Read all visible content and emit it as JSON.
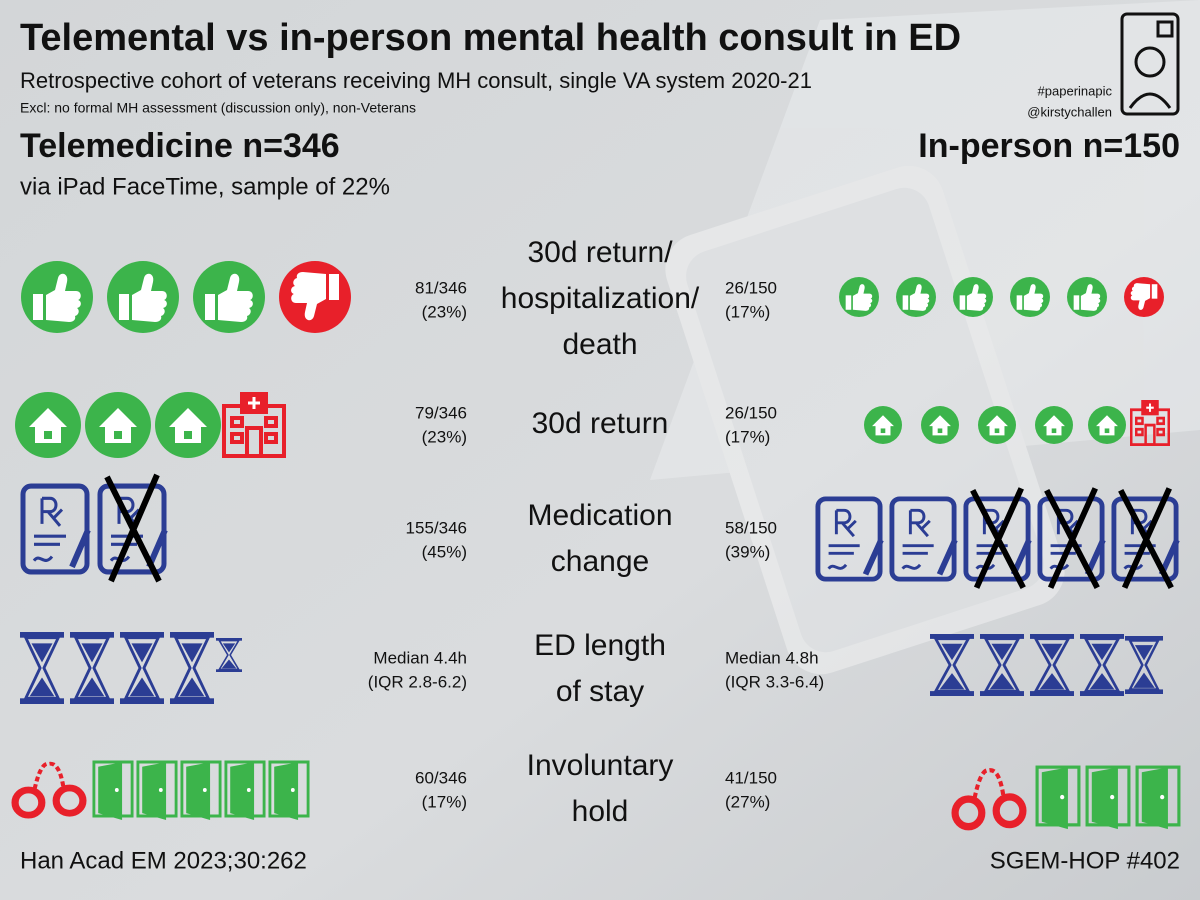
{
  "header": {
    "title": "Telemental vs in-person mental health consult in ED",
    "subtitle": "Retrospective cohort of veterans receiving MH consult, single VA system 2020-21",
    "exclusions": "Excl: no formal MH assessment (discussion only), non-Veterans",
    "tags": [
      "#paperinapic",
      "@kirstychallen"
    ]
  },
  "groups": {
    "telemedicine": {
      "title": "Telemedicine n=346",
      "note": "via iPad FaceTime, sample of 22%"
    },
    "in_person": {
      "title": "In-person n=150"
    }
  },
  "outcomes": [
    {
      "label": [
        "30d return/",
        "hospitalization/",
        "death"
      ],
      "telemedicine": [
        "81/346",
        "(23%)"
      ],
      "in_person": [
        "26/150",
        "(17%)"
      ]
    },
    {
      "label": [
        "30d return"
      ],
      "telemedicine": [
        "79/346",
        "(23%)"
      ],
      "in_person": [
        "26/150",
        "(17%)"
      ]
    },
    {
      "label": [
        "Medication",
        "change"
      ],
      "telemedicine": [
        "155/346",
        "(45%)"
      ],
      "in_person": [
        "58/150",
        "(39%)"
      ]
    },
    {
      "label": [
        "ED length",
        "of stay"
      ],
      "telemedicine": [
        "Median 4.4h",
        "(IQR 2.8-6.2)"
      ],
      "in_person": [
        "Median 4.8h",
        "(IQR 3.3-6.4)"
      ]
    },
    {
      "label": [
        "Involuntary",
        "hold"
      ],
      "telemedicine": [
        "60/346",
        "(17%)"
      ],
      "in_person": [
        "41/150",
        "(27%)"
      ]
    }
  ],
  "footer": {
    "citation": "Han Acad EM 2023;30:262",
    "series": "SGEM-HOP #402"
  }
}
